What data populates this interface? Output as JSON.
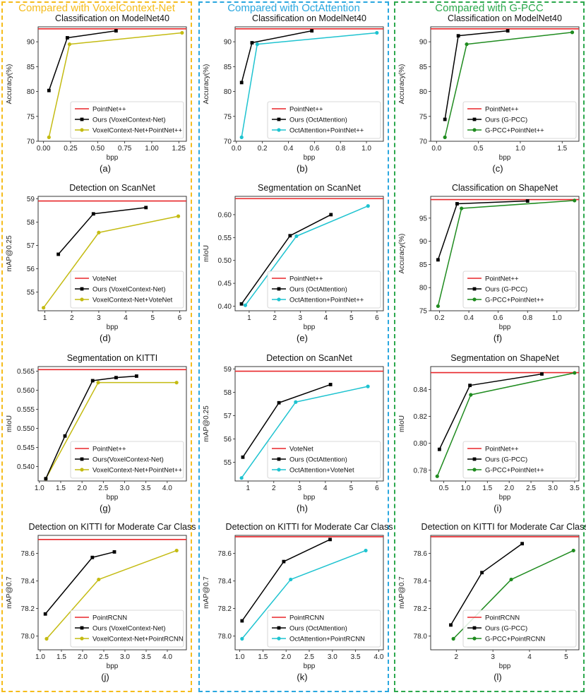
{
  "colors": {
    "baseline": "#e8272a",
    "ours": "#000000",
    "voxelcontext": "#c4bb12",
    "octattention": "#1ec3d0",
    "gpcc": "#1f8b1f",
    "col_voxelcontext": "#f5bc1c",
    "col_octattention": "#2aa7df",
    "col_gpcc": "#2ca84d"
  },
  "columns": [
    {
      "label": "Compared with VoxelContext-Net",
      "color_key": "col_voxelcontext"
    },
    {
      "label": "Compared with OctAttention",
      "color_key": "col_octattention"
    },
    {
      "label": "Compared with G-PCC",
      "color_key": "col_gpcc"
    }
  ],
  "chart_data": [
    {
      "type": "line",
      "panel": "(a)",
      "title": "Classification on ModelNet40",
      "xlabel": "bpp",
      "ylabel": "Accuracy(%)",
      "xlim": [
        -0.05,
        1.32
      ],
      "ylim": [
        70,
        93
      ],
      "xticks": [
        0.0,
        0.25,
        0.5,
        0.75,
        1.0,
        1.25
      ],
      "xtick_labels": [
        "0.00",
        "0.25",
        "0.50",
        "0.75",
        "1.00",
        "1.25"
      ],
      "yticks": [
        70,
        75,
        80,
        85,
        90
      ],
      "baseline": {
        "name": "PointNet++",
        "value": 92.6
      },
      "series": [
        {
          "name": "Ours (VoxelContext-Net)",
          "color_key": "ours",
          "x": [
            0.05,
            0.22,
            0.67
          ],
          "y": [
            80.2,
            90.8,
            92.2
          ]
        },
        {
          "name": "VoxelContext-Net+PointNet++",
          "color_key": "voxelcontext",
          "x": [
            0.05,
            0.24,
            1.28
          ],
          "y": [
            70.8,
            89.5,
            91.8
          ]
        }
      ],
      "legend": "bottom-right"
    },
    {
      "type": "line",
      "panel": "(b)",
      "title": "Classification on ModelNet40",
      "xlabel": "bpp",
      "ylabel": "Accuracy(%)",
      "xlim": [
        -0.01,
        1.13
      ],
      "ylim": [
        70,
        93
      ],
      "xticks": [
        0.0,
        0.2,
        0.4,
        0.6,
        0.8,
        1.0
      ],
      "xtick_labels": [
        "0.0",
        "0.2",
        "0.4",
        "0.6",
        "0.8",
        "1.0"
      ],
      "yticks": [
        70,
        75,
        80,
        85,
        90
      ],
      "baseline": {
        "name": "PointNet++",
        "value": 92.6
      },
      "series": [
        {
          "name": "Ours (OctAttention)",
          "color_key": "ours",
          "x": [
            0.04,
            0.12,
            0.58
          ],
          "y": [
            81.8,
            89.8,
            92.2
          ]
        },
        {
          "name": "OctAttention+PointNet++",
          "color_key": "octattention",
          "x": [
            0.04,
            0.16,
            1.08
          ],
          "y": [
            70.8,
            89.5,
            91.8
          ]
        }
      ],
      "legend": "bottom-right"
    },
    {
      "type": "line",
      "panel": "(c)",
      "title": "Classification on ModelNet40",
      "xlabel": "bpp",
      "ylabel": "Accuracy(%)",
      "xlim": [
        -0.07,
        1.7
      ],
      "ylim": [
        70,
        93
      ],
      "xticks": [
        0.0,
        0.5,
        1.0,
        1.5
      ],
      "xtick_labels": [
        "0.0",
        "0.5",
        "1.0",
        "1.5"
      ],
      "yticks": [
        70,
        75,
        80,
        85,
        90
      ],
      "baseline": {
        "name": "PointNet++",
        "value": 92.6
      },
      "series": [
        {
          "name": "Ours (G-PCC)",
          "color_key": "ours",
          "x": [
            0.1,
            0.26,
            0.85
          ],
          "y": [
            74.4,
            91.2,
            92.2
          ]
        },
        {
          "name": "G-PCC+PointNet++",
          "color_key": "gpcc",
          "x": [
            0.1,
            0.36,
            1.62
          ],
          "y": [
            70.8,
            89.5,
            91.9
          ]
        }
      ],
      "legend": "bottom-right"
    },
    {
      "type": "line",
      "panel": "(d)",
      "title": "Detection on ScanNet",
      "xlabel": "bpp",
      "ylabel": "mAP@0.25",
      "xlim": [
        0.75,
        6.25
      ],
      "ylim": [
        54.2,
        59.1
      ],
      "xticks": [
        1,
        2,
        3,
        4,
        5,
        6
      ],
      "xtick_labels": [
        "1",
        "2",
        "3",
        "4",
        "5",
        "6"
      ],
      "yticks": [
        55,
        56,
        57,
        58,
        59
      ],
      "baseline": {
        "name": "VoteNet",
        "value": 58.9
      },
      "series": [
        {
          "name": "Ours (VoxelContext-Net)",
          "color_key": "ours",
          "x": [
            1.5,
            2.8,
            4.75
          ],
          "y": [
            56.62,
            58.35,
            58.62
          ]
        },
        {
          "name": "VoxelContext-Net+VoteNet",
          "color_key": "voxelcontext",
          "x": [
            0.95,
            3.0,
            5.95
          ],
          "y": [
            54.33,
            57.55,
            58.25
          ]
        }
      ],
      "legend": "bottom-right"
    },
    {
      "type": "line",
      "panel": "(e)",
      "title": "Segmentation on ScanNet",
      "xlabel": "bpp",
      "ylabel": "mIoU",
      "xlim": [
        0.45,
        6.25
      ],
      "ylim": [
        0.39,
        0.64
      ],
      "xticks": [
        1,
        2,
        3,
        4,
        5,
        6
      ],
      "xtick_labels": [
        "1",
        "2",
        "3",
        "4",
        "5",
        "6"
      ],
      "yticks": [
        0.4,
        0.45,
        0.5,
        0.55,
        0.6
      ],
      "ytick_labels": [
        "0.40",
        "0.45",
        "0.50",
        "0.55",
        "0.60"
      ],
      "baseline": {
        "name": "PointNet++",
        "value": 0.635
      },
      "series": [
        {
          "name": "Ours (OctAttention)",
          "color_key": "ours",
          "x": [
            0.7,
            2.6,
            4.2
          ],
          "y": [
            0.405,
            0.554,
            0.6
          ]
        },
        {
          "name": "OctAttention+PointNet++",
          "color_key": "octattention",
          "x": [
            0.85,
            2.85,
            5.65
          ],
          "y": [
            0.402,
            0.553,
            0.619
          ]
        }
      ],
      "legend": "bottom-right"
    },
    {
      "type": "line",
      "panel": "(f)",
      "title": "Classification on ShapeNet",
      "xlabel": "bpp",
      "ylabel": "Accuracy(%)",
      "xlim": [
        0.14,
        1.15
      ],
      "ylim": [
        75,
        99.7
      ],
      "xticks": [
        0.2,
        0.4,
        0.6,
        0.8,
        1.0
      ],
      "xtick_labels": [
        "0.2",
        "0.4",
        "0.6",
        "0.8",
        "1.0"
      ],
      "yticks": [
        75,
        80,
        85,
        90,
        95
      ],
      "ytick_labels": [
        "75",
        "80",
        "85",
        "90",
        "95"
      ],
      "baseline": {
        "name": "PointNet++",
        "value": 99.0
      },
      "series": [
        {
          "name": "Ours (G-PCC)",
          "color_key": "ours",
          "x": [
            0.19,
            0.32,
            0.8
          ],
          "y": [
            86.0,
            98.1,
            98.7
          ]
        },
        {
          "name": "G-PCC+PointNet++",
          "color_key": "gpcc",
          "x": [
            0.19,
            0.35,
            1.12
          ],
          "y": [
            76.0,
            97.1,
            98.8
          ]
        }
      ],
      "legend": "bottom-right"
    },
    {
      "type": "line",
      "panel": "(g)",
      "title": "Segmentation on KITTI",
      "xlabel": "bpp",
      "ylabel": "mIoU",
      "xlim": [
        0.97,
        4.45
      ],
      "ylim": [
        0.5362,
        0.5662
      ],
      "xticks": [
        1.0,
        1.5,
        2.0,
        2.5,
        3.0,
        3.5,
        4.0
      ],
      "xtick_labels": [
        "1.0",
        "1.5",
        "2.0",
        "2.5",
        "3.0",
        "3.5",
        "4.0"
      ],
      "yticks": [
        0.54,
        0.545,
        0.55,
        0.555,
        0.56,
        0.565
      ],
      "ytick_labels": [
        "0.540",
        "0.545",
        "0.550",
        "0.555",
        "0.560",
        "0.565"
      ],
      "baseline": {
        "name": "PointNet++",
        "value": 0.5654
      },
      "series": [
        {
          "name": "Ours(VoxelContext-Net)",
          "color_key": "ours",
          "x": [
            1.15,
            1.6,
            2.25,
            2.8,
            3.28
          ],
          "y": [
            0.5368,
            0.548,
            0.5625,
            0.5633,
            0.5637
          ]
        },
        {
          "name": "VoxelContext-Net+PointNet++",
          "color_key": "voxelcontext",
          "x": [
            1.15,
            2.38,
            4.22
          ],
          "y": [
            0.5368,
            0.562,
            0.562
          ]
        }
      ],
      "legend": "bottom-right"
    },
    {
      "type": "line",
      "panel": "(h)",
      "title": "Detection on ScanNet",
      "xlabel": "bpp",
      "ylabel": "mAP@0.25",
      "xlim": [
        0.5,
        6.25
      ],
      "ylim": [
        54.2,
        59.1
      ],
      "xticks": [
        1,
        2,
        3,
        4,
        5,
        6
      ],
      "xtick_labels": [
        "1",
        "2",
        "3",
        "4",
        "5",
        "6"
      ],
      "yticks": [
        55,
        56,
        57,
        58,
        59
      ],
      "baseline": {
        "name": "VoteNet",
        "value": 58.9
      },
      "series": [
        {
          "name": "Ours (OctAttention)",
          "color_key": "ours",
          "x": [
            0.8,
            2.2,
            4.2
          ],
          "y": [
            55.22,
            57.55,
            58.33
          ]
        },
        {
          "name": "OctAttention+VoteNet",
          "color_key": "octattention",
          "x": [
            0.75,
            2.85,
            5.65
          ],
          "y": [
            54.33,
            57.58,
            58.25
          ]
        }
      ],
      "legend": "bottom-right"
    },
    {
      "type": "line",
      "panel": "(i)",
      "title": "Segmentation on ShapeNet",
      "xlabel": "bpp",
      "ylabel": "mIoU",
      "xlim": [
        0.2,
        3.6
      ],
      "ylim": [
        0.772,
        0.857
      ],
      "xticks": [
        0.5,
        1.0,
        1.5,
        2.0,
        2.5,
        3.0,
        3.5
      ],
      "xtick_labels": [
        "0.5",
        "1.0",
        "1.5",
        "2.0",
        "2.5",
        "3.0",
        "3.5"
      ],
      "yticks": [
        0.78,
        0.8,
        0.82,
        0.84
      ],
      "ytick_labels": [
        "0.78",
        "0.80",
        "0.82",
        "0.84"
      ],
      "baseline": {
        "name": "PointNet++",
        "value": 0.8525
      },
      "series": [
        {
          "name": "Ours (G-PCC)",
          "color_key": "ours",
          "x": [
            0.4,
            1.1,
            2.75
          ],
          "y": [
            0.7955,
            0.843,
            0.8515
          ]
        },
        {
          "name": "G-PCC+PointNet++",
          "color_key": "gpcc",
          "x": [
            0.35,
            1.12,
            3.5
          ],
          "y": [
            0.7755,
            0.836,
            0.8523
          ]
        }
      ],
      "legend": "bottom-right"
    },
    {
      "type": "line",
      "panel": "(j)",
      "title": "Detection on KITTI for Moderate Car Class",
      "xlabel": "bpp",
      "ylabel": "mAP@0.7",
      "xlim": [
        0.95,
        4.45
      ],
      "ylim": [
        77.9,
        78.73
      ],
      "xticks": [
        1.0,
        1.5,
        2.0,
        2.5,
        3.0,
        3.5,
        4.0
      ],
      "xtick_labels": [
        "1.0",
        "1.5",
        "2.0",
        "2.5",
        "3.0",
        "3.5",
        "4.0"
      ],
      "yticks": [
        78.0,
        78.2,
        78.4,
        78.6
      ],
      "ytick_labels": [
        "78.0",
        "78.2",
        "78.4",
        "78.6"
      ],
      "baseline": {
        "name": "PointRCNN",
        "value": 78.7
      },
      "series": [
        {
          "name": "Ours (VoxelContext-Net)",
          "color_key": "ours",
          "x": [
            1.12,
            2.23,
            2.75
          ],
          "y": [
            78.16,
            78.57,
            78.61
          ]
        },
        {
          "name": "VoxelContext-Net+PointRCNN",
          "color_key": "voxelcontext",
          "x": [
            1.15,
            2.38,
            4.22
          ],
          "y": [
            77.98,
            78.41,
            78.62
          ]
        }
      ],
      "legend": "bottom-right"
    },
    {
      "type": "line",
      "panel": "(k)",
      "title": "Detection on KITTI for Moderate Car Class",
      "xlabel": "bpp",
      "ylabel": "mAP@0.7",
      "xlim": [
        0.9,
        4.1
      ],
      "ylim": [
        77.9,
        78.73
      ],
      "xticks": [
        1.0,
        1.5,
        2.0,
        2.5,
        3.0,
        3.5,
        4.0
      ],
      "xtick_labels": [
        "1.0",
        "1.5",
        "2.0",
        "2.5",
        "3.0",
        "3.5",
        "4.0"
      ],
      "yticks": [
        78.0,
        78.2,
        78.4,
        78.6
      ],
      "ytick_labels": [
        "78.0",
        "78.2",
        "78.4",
        "78.6"
      ],
      "baseline": {
        "name": "PointRCNN",
        "value": 78.72
      },
      "series": [
        {
          "name": "Ours (OctAttention)",
          "color_key": "ours",
          "x": [
            1.05,
            1.95,
            2.95
          ],
          "y": [
            78.11,
            78.54,
            78.7
          ]
        },
        {
          "name": "OctAttention+PointRCNN",
          "color_key": "octattention",
          "x": [
            1.05,
            2.1,
            3.72
          ],
          "y": [
            77.98,
            78.41,
            78.62
          ]
        }
      ],
      "legend": "bottom-right"
    },
    {
      "type": "line",
      "panel": "(l)",
      "title": "Detection on KITTI for Moderate Car Class",
      "xlabel": "bpp",
      "ylabel": "mAP@0.7",
      "xlim": [
        1.3,
        5.35
      ],
      "ylim": [
        77.9,
        78.73
      ],
      "xticks": [
        2,
        3,
        4,
        5
      ],
      "xtick_labels": [
        "2",
        "3",
        "4",
        "5"
      ],
      "yticks": [
        78.0,
        78.2,
        78.4,
        78.6
      ],
      "ytick_labels": [
        "78.0",
        "78.2",
        "78.4",
        "78.6"
      ],
      "baseline": {
        "name": "PointRCNN",
        "value": 78.72
      },
      "series": [
        {
          "name": "Ours (G-PCC)",
          "color_key": "ours",
          "x": [
            1.85,
            2.7,
            3.8
          ],
          "y": [
            78.08,
            78.46,
            78.67
          ]
        },
        {
          "name": "G-PCC+PointRCNN",
          "color_key": "gpcc",
          "x": [
            1.92,
            3.5,
            5.2
          ],
          "y": [
            77.98,
            78.41,
            78.62
          ]
        }
      ],
      "legend": "bottom-right"
    }
  ]
}
